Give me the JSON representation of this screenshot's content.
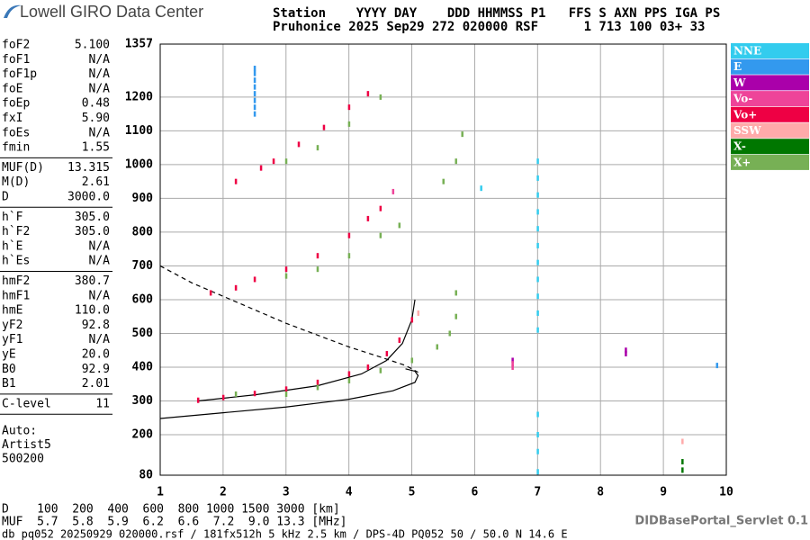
{
  "header": {
    "logo": "Lowell GIRO Data Center",
    "line1": "Station    YYYY DAY    DDD HHMMSS P1   FFS S AXN PPS IGA PS",
    "line2": "Pruhonice 2025 Sep29 272 020000 RSF      1 713 100 03+ 33"
  },
  "params": [
    [
      [
        "foF2",
        "5.100"
      ],
      [
        "foF1",
        "N/A"
      ],
      [
        "foF1p",
        "N/A"
      ],
      [
        "foE",
        "N/A"
      ],
      [
        "foEp",
        "0.48"
      ],
      [
        "fxI",
        "5.90"
      ],
      [
        "foEs",
        "N/A"
      ],
      [
        "fmin",
        "1.55"
      ]
    ],
    [
      [
        "MUF(D)",
        "13.315"
      ],
      [
        "M(D)",
        "2.61"
      ],
      [
        "D",
        "3000.0"
      ]
    ],
    [
      [
        "h`F",
        "305.0"
      ],
      [
        "h`F2",
        "305.0"
      ],
      [
        "h`E",
        "N/A"
      ],
      [
        "h`Es",
        "N/A"
      ]
    ],
    [
      [
        "hmF2",
        "380.7"
      ],
      [
        "hmF1",
        "N/A"
      ],
      [
        "hmE",
        "110.0"
      ],
      [
        "yF2",
        "92.8"
      ],
      [
        "yF1",
        "N/A"
      ],
      [
        "yE",
        "20.0"
      ],
      [
        "B0",
        "92.9"
      ],
      [
        "B1",
        "2.01"
      ]
    ],
    [
      [
        "C-level",
        "11"
      ]
    ]
  ],
  "auto": [
    "Auto:",
    "Artist5",
    "500200"
  ],
  "footer": {
    "d_row": "D    100  200  400  600  800 1000 1500 3000 [km]",
    "muf_row": "MUF  5.7  5.8  5.9  6.2  6.6  7.2  9.0 13.3 [MHz]",
    "file": "db pq052 20250929 020000.rsf / 181fx512h 5 kHz 2.5 km / DPS-4D PQ052 50 / 50.0 N 14.6 E",
    "servlet": "DIDBasePortal_Servlet 0.1"
  },
  "chart_data": {
    "type": "scatter",
    "xlim": [
      1,
      10
    ],
    "xticks": [
      1,
      2,
      3,
      4,
      5,
      6,
      7,
      8,
      9,
      10
    ],
    "ylim": [
      80,
      1357
    ],
    "yticks": [
      80,
      200,
      300,
      400,
      500,
      600,
      700,
      800,
      900,
      1000,
      1100,
      1200,
      1357
    ],
    "grid": true,
    "legend": "right",
    "series": [
      {
        "name": "NNE",
        "color": "#33ccee",
        "x": [
          7,
          7,
          7,
          7,
          7,
          7,
          7,
          7,
          7,
          7,
          7,
          7,
          7,
          7,
          7,
          6.1
        ],
        "values": [
          510,
          560,
          610,
          660,
          710,
          760,
          810,
          860,
          910,
          960,
          1010,
          260,
          200,
          150,
          90,
          930
        ]
      },
      {
        "name": "E",
        "color": "#3399ee",
        "x": [
          2.5,
          2.5,
          2.5,
          2.5,
          2.5,
          2.5,
          2.5,
          2.5,
          9.85
        ],
        "values": [
          1150,
          1170,
          1190,
          1210,
          1230,
          1250,
          1270,
          1285,
          405
        ]
      },
      {
        "name": "W",
        "color": "#aa00aa",
        "x": [
          8.4,
          8.4,
          6.6
        ],
        "values": [
          440,
          450,
          420
        ]
      },
      {
        "name": "Vo-",
        "color": "#ee4499",
        "x": [
          6.6,
          6.6,
          4.7
        ],
        "values": [
          400,
          410,
          920
        ]
      },
      {
        "name": "Vo+",
        "color": "#ee0044",
        "x": [
          1.6,
          2.0,
          2.5,
          3.0,
          3.5,
          4.0,
          4.3,
          4.6,
          4.8,
          5.0,
          1.8,
          2.2,
          2.5,
          3.0,
          3.5,
          4.0,
          4.3,
          4.5,
          2.2,
          2.6,
          2.8,
          3.2,
          3.6,
          4.0,
          4.3
        ],
        "values": [
          302,
          310,
          322,
          335,
          355,
          380,
          400,
          440,
          480,
          540,
          620,
          635,
          660,
          690,
          730,
          790,
          840,
          870,
          950,
          990,
          1010,
          1060,
          1110,
          1170,
          1210
        ]
      },
      {
        "name": "SSW",
        "color": "#ffaaaa",
        "x": [
          5.1,
          9.3
        ],
        "values": [
          560,
          180
        ]
      },
      {
        "name": "X-",
        "color": "#007700",
        "x": [
          9.3,
          9.3
        ],
        "values": [
          120,
          95
        ]
      },
      {
        "name": "X+",
        "color": "#77b055",
        "x": [
          2.2,
          3.0,
          3.5,
          4.0,
          4.5,
          5.0,
          5.4,
          5.6,
          5.7,
          3.0,
          3.5,
          4.0,
          4.5,
          4.8,
          5.7,
          3.0,
          3.5,
          4.0,
          4.5,
          5.5,
          5.7,
          5.8
        ],
        "values": [
          320,
          320,
          340,
          360,
          390,
          420,
          460,
          500,
          550,
          670,
          690,
          730,
          790,
          820,
          620,
          1010,
          1050,
          1120,
          1200,
          950,
          1010,
          1090
        ]
      }
    ],
    "lines": [
      {
        "color": "#000000",
        "dash": false,
        "x": [
          1.6,
          2.5,
          3.5,
          4.2,
          4.6,
          4.85,
          5.0,
          5.05
        ],
        "values": [
          300,
          318,
          345,
          380,
          420,
          470,
          540,
          600
        ]
      },
      {
        "color": "#000000",
        "dash": false,
        "x": [
          1,
          2,
          3,
          4,
          4.7,
          5.05,
          5.1,
          5.05,
          4.9
        ],
        "values": [
          248,
          265,
          282,
          305,
          330,
          355,
          375,
          388,
          395
        ]
      },
      {
        "color": "#000000",
        "dash": true,
        "x": [
          1,
          1.5,
          2,
          2.5,
          3,
          3.5,
          4,
          4.5,
          4.9,
          5.1
        ],
        "values": [
          700,
          650,
          610,
          570,
          530,
          495,
          460,
          430,
          405,
          385
        ]
      }
    ]
  }
}
